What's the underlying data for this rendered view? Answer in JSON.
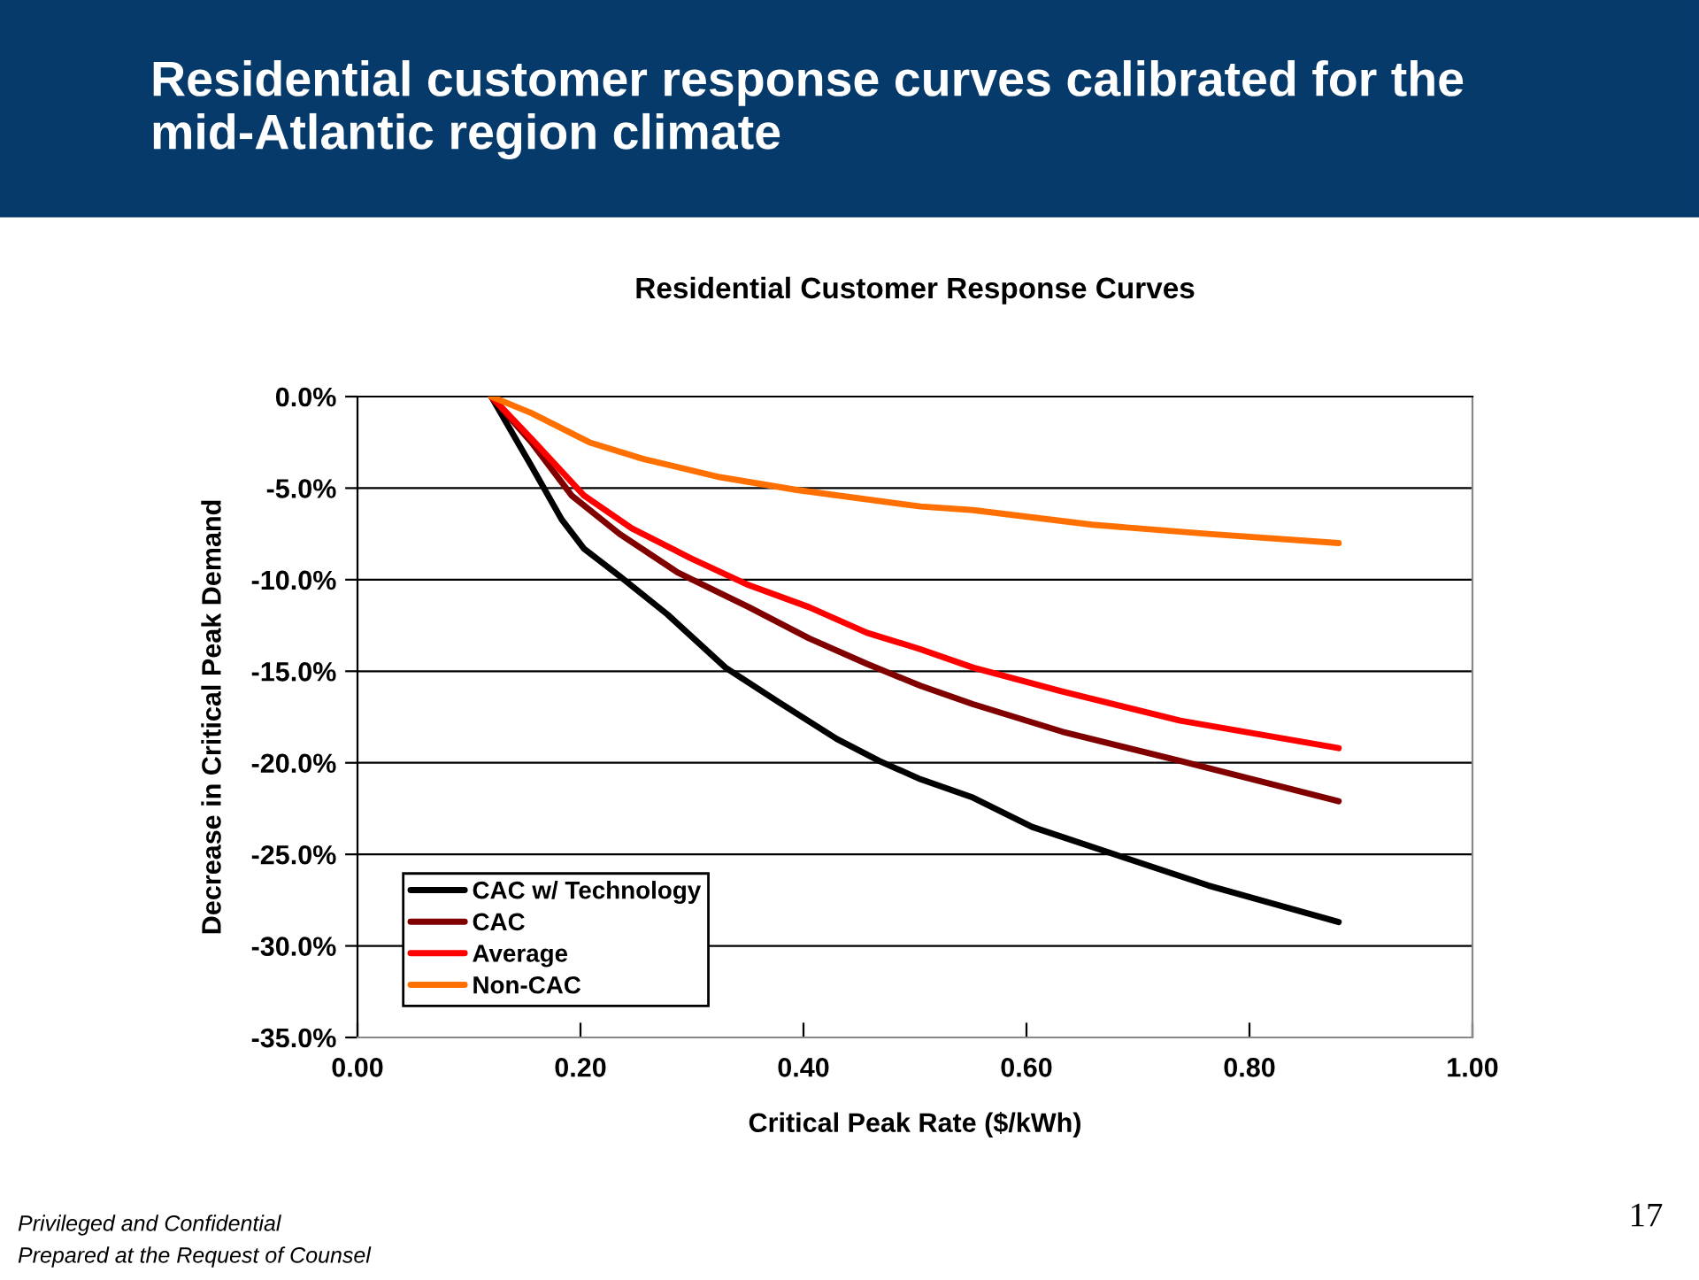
{
  "chart_data": {
    "type": "line",
    "title": "Residential customer response curves calibrated for the mid-Atlantic region climate",
    "subtitle": "Residential Customer Response Curves",
    "xlabel": "Critical Peak Rate ($/kWh)",
    "ylabel": "Decrease in Critical Peak Demand",
    "series": [
      {
        "name": "CAC w/ Technology",
        "color": "#000000",
        "x": [
          0.12,
          0.156,
          0.183,
          0.203,
          0.235,
          0.278,
          0.33,
          0.378,
          0.43,
          0.468,
          0.505,
          0.552,
          0.605,
          0.684,
          0.763,
          0.88
        ],
        "values": [
          0,
          -3.8,
          -6.7,
          -8.3,
          -9.8,
          -11.9,
          -14.8,
          -16.7,
          -18.7,
          -19.9,
          -20.9,
          -21.9,
          -23.5,
          -25.1,
          -26.7,
          -28.7
        ]
      },
      {
        "name": "CAC",
        "color": "#800000",
        "x": [
          0.12,
          0.156,
          0.192,
          0.235,
          0.287,
          0.351,
          0.405,
          0.457,
          0.505,
          0.552,
          0.632,
          0.738,
          0.88
        ],
        "values": [
          0,
          -2.5,
          -5.4,
          -7.5,
          -9.6,
          -11.5,
          -13.2,
          -14.6,
          -15.8,
          -16.8,
          -18.3,
          -19.9,
          -22.1
        ]
      },
      {
        "name": "Average",
        "color": "#ff0000",
        "x": [
          0.12,
          0.156,
          0.203,
          0.246,
          0.298,
          0.351,
          0.405,
          0.457,
          0.505,
          0.552,
          0.632,
          0.738,
          0.88
        ],
        "values": [
          0,
          -2.3,
          -5.4,
          -7.2,
          -8.8,
          -10.3,
          -11.5,
          -12.9,
          -13.8,
          -14.8,
          -16.1,
          -17.7,
          -19.2
        ]
      },
      {
        "name": "Non-CAC",
        "color": "#ff7000",
        "x": [
          0.12,
          0.156,
          0.208,
          0.256,
          0.325,
          0.394,
          0.505,
          0.552,
          0.659,
          0.763,
          0.88
        ],
        "values": [
          0,
          -0.9,
          -2.5,
          -3.4,
          -4.4,
          -5.1,
          -6.0,
          -6.2,
          -7.0,
          -7.5,
          -8.0
        ]
      }
    ],
    "xlim": [
      0,
      1
    ],
    "ylim": [
      -35,
      0
    ],
    "xticks": [
      {
        "value": 0,
        "label": "0.00"
      },
      {
        "value": 0.2,
        "label": "0.20"
      },
      {
        "value": 0.4,
        "label": "0.40"
      },
      {
        "value": 0.6,
        "label": "0.60"
      },
      {
        "value": 0.8,
        "label": "0.80"
      },
      {
        "value": 1,
        "label": "1.00"
      }
    ],
    "yticks": [
      {
        "value": 0,
        "label": "0.0%"
      },
      {
        "value": -5,
        "label": "-5.0%"
      },
      {
        "value": -10,
        "label": "-10.0%"
      },
      {
        "value": -15,
        "label": "-15.0%"
      },
      {
        "value": -20,
        "label": "-20.0%"
      },
      {
        "value": -25,
        "label": "-25.0%"
      },
      {
        "value": -30,
        "label": "-30.0%"
      },
      {
        "value": -35,
        "label": "-35.0%"
      }
    ],
    "grid": "y",
    "legend": "bottom left",
    "marker": "none",
    "line_style": "solid",
    "annotations": [
      "Privileged and Confidential",
      "Prepared at the Request of Counsel",
      "17"
    ]
  }
}
